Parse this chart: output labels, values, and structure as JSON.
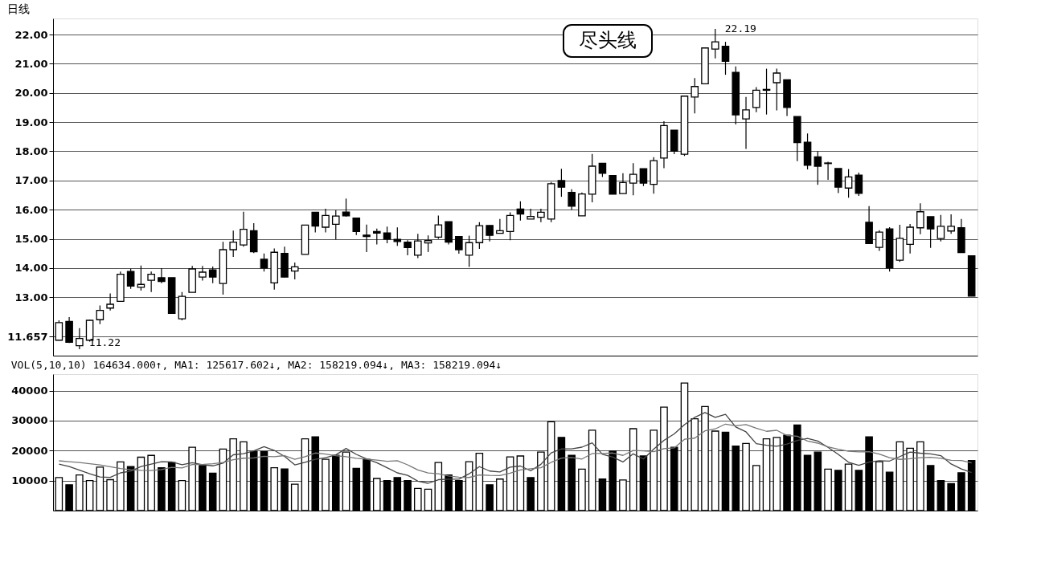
{
  "chart_data": [
    {
      "type": "candlestick",
      "title": "日线",
      "categories": [
        null,
        null,
        null,
        null,
        null,
        null,
        null,
        null,
        null,
        null,
        null,
        null,
        null,
        null,
        null,
        null,
        null,
        null,
        null,
        null,
        null,
        null,
        null,
        null,
        null,
        null,
        null,
        null,
        null,
        null,
        null,
        null,
        null,
        null,
        null,
        null,
        null,
        null,
        null,
        null,
        null,
        null,
        null,
        null,
        null,
        null,
        null,
        null,
        null,
        null,
        null,
        null,
        null,
        null,
        null,
        null,
        null,
        null,
        null,
        null,
        null,
        null,
        null,
        null,
        null,
        null,
        null,
        null,
        null,
        null,
        null,
        null,
        null,
        null,
        null,
        null,
        null,
        null,
        null,
        null,
        null,
        null,
        null,
        null,
        null,
        null,
        null,
        null,
        null,
        null
      ],
      "ohlc": [
        [
          11.53,
          12.21,
          11.53,
          12.13
        ],
        [
          12.17,
          12.32,
          11.43,
          11.46
        ],
        [
          11.34,
          11.94,
          11.22,
          11.59
        ],
        [
          11.53,
          12.23,
          11.48,
          12.21
        ],
        [
          12.23,
          12.72,
          12.08,
          12.55
        ],
        [
          12.63,
          13.13,
          12.55,
          12.76
        ],
        [
          12.86,
          13.88,
          12.86,
          13.79
        ],
        [
          13.88,
          13.98,
          13.29,
          13.38
        ],
        [
          13.34,
          14.09,
          13.23,
          13.44
        ],
        [
          13.58,
          13.88,
          13.18,
          13.79
        ],
        [
          13.67,
          14.0,
          13.48,
          13.54
        ],
        [
          13.67,
          13.67,
          12.43,
          12.45
        ],
        [
          12.26,
          13.18,
          12.21,
          13.03
        ],
        [
          13.17,
          14.07,
          13.17,
          13.97
        ],
        [
          13.69,
          14.07,
          13.57,
          13.86
        ],
        [
          13.94,
          14.05,
          13.48,
          13.69
        ],
        [
          13.47,
          14.9,
          13.09,
          14.63
        ],
        [
          14.63,
          15.28,
          14.38,
          14.89
        ],
        [
          14.79,
          15.93,
          14.73,
          15.33
        ],
        [
          15.28,
          15.54,
          14.51,
          14.56
        ],
        [
          14.3,
          14.5,
          13.88,
          14.0
        ],
        [
          13.49,
          14.67,
          13.26,
          14.54
        ],
        [
          14.5,
          14.73,
          13.69,
          13.69
        ],
        [
          13.9,
          14.19,
          13.61,
          14.04
        ],
        [
          14.47,
          15.47,
          14.47,
          15.47
        ],
        [
          15.91,
          15.91,
          15.22,
          15.44
        ],
        [
          15.4,
          16.03,
          15.22,
          15.8
        ],
        [
          15.5,
          15.98,
          14.98,
          15.78
        ],
        [
          15.92,
          16.38,
          15.76,
          15.79
        ],
        [
          15.71,
          15.71,
          15.13,
          15.25
        ],
        [
          15.13,
          15.49,
          14.55,
          15.08
        ],
        [
          15.25,
          15.35,
          14.81,
          15.2
        ],
        [
          15.2,
          15.42,
          14.85,
          14.99
        ],
        [
          14.98,
          15.39,
          14.76,
          14.91
        ],
        [
          14.89,
          14.95,
          14.44,
          14.7
        ],
        [
          14.44,
          15.17,
          14.34,
          14.93
        ],
        [
          14.86,
          15.12,
          14.55,
          14.94
        ],
        [
          15.06,
          15.8,
          15.0,
          15.48
        ],
        [
          15.59,
          15.59,
          14.81,
          14.89
        ],
        [
          15.08,
          15.1,
          14.49,
          14.63
        ],
        [
          14.44,
          15.11,
          14.04,
          14.87
        ],
        [
          14.87,
          15.57,
          14.66,
          15.45
        ],
        [
          15.46,
          15.46,
          14.91,
          15.12
        ],
        [
          15.19,
          15.68,
          15.19,
          15.28
        ],
        [
          15.25,
          15.91,
          14.95,
          15.8
        ],
        [
          16.02,
          16.29,
          15.63,
          15.85
        ],
        [
          15.68,
          16.03,
          15.68,
          15.77
        ],
        [
          15.74,
          16.03,
          15.57,
          15.91
        ],
        [
          15.68,
          16.95,
          15.57,
          16.89
        ],
        [
          17.0,
          17.4,
          16.44,
          16.77
        ],
        [
          16.59,
          16.7,
          16.0,
          16.12
        ],
        [
          15.79,
          16.59,
          15.79,
          16.54
        ],
        [
          16.53,
          17.91,
          16.25,
          17.49
        ],
        [
          17.59,
          17.59,
          17.12,
          17.25
        ],
        [
          17.17,
          17.17,
          16.53,
          16.53
        ],
        [
          16.55,
          17.25,
          16.55,
          16.93
        ],
        [
          16.91,
          17.59,
          16.49,
          17.21
        ],
        [
          17.4,
          17.4,
          16.81,
          16.91
        ],
        [
          16.87,
          17.8,
          16.55,
          17.68
        ],
        [
          17.77,
          19.03,
          17.42,
          18.88
        ],
        [
          18.72,
          18.73,
          17.9,
          18.0
        ],
        [
          17.9,
          19.91,
          17.84,
          19.89
        ],
        [
          19.86,
          20.51,
          19.3,
          20.22
        ],
        [
          20.31,
          21.54,
          20.31,
          21.54
        ],
        [
          21.5,
          22.19,
          21.18,
          21.75
        ],
        [
          21.6,
          21.75,
          20.62,
          21.08
        ],
        [
          20.7,
          20.91,
          18.92,
          19.25
        ],
        [
          19.11,
          19.86,
          18.08,
          19.42
        ],
        [
          19.5,
          20.2,
          19.34,
          20.09
        ],
        [
          20.12,
          20.83,
          19.26,
          20.09
        ],
        [
          20.35,
          20.83,
          19.4,
          20.68
        ],
        [
          20.45,
          20.45,
          19.21,
          19.5
        ],
        [
          19.19,
          19.19,
          17.66,
          18.3
        ],
        [
          18.31,
          18.61,
          17.38,
          17.52
        ],
        [
          17.81,
          18.0,
          16.85,
          17.49
        ],
        [
          17.6,
          17.64,
          17.02,
          17.58
        ],
        [
          17.41,
          17.41,
          16.57,
          16.77
        ],
        [
          16.74,
          17.39,
          16.41,
          17.12
        ],
        [
          17.18,
          17.27,
          16.47,
          16.56
        ],
        [
          15.57,
          16.12,
          14.84,
          14.84
        ],
        [
          14.71,
          15.3,
          14.59,
          15.23
        ],
        [
          15.34,
          15.4,
          13.88,
          14.0
        ],
        [
          14.27,
          15.48,
          14.21,
          15.02
        ],
        [
          14.81,
          15.51,
          14.5,
          15.4
        ],
        [
          15.38,
          16.22,
          15.16,
          15.93
        ],
        [
          15.76,
          15.76,
          14.69,
          15.34
        ],
        [
          15.01,
          15.82,
          14.91,
          15.43
        ],
        [
          15.27,
          15.84,
          15.17,
          15.43
        ],
        [
          15.38,
          15.68,
          14.53,
          14.53
        ],
        [
          14.42,
          14.42,
          13.04,
          13.04
        ]
      ],
      "colors": [
        "#ffffff",
        "#000000",
        "#ffffff",
        "#ffffff",
        "#ffffff",
        "#ffffff",
        "#ffffff",
        "#000000",
        "#ffffff",
        "#ffffff",
        "#000000",
        "#000000",
        "#ffffff",
        "#ffffff",
        "#ffffff",
        "#000000",
        "#ffffff",
        "#ffffff",
        "#ffffff",
        "#000000",
        "#000000",
        "#ffffff",
        "#000000",
        "#ffffff",
        "#ffffff",
        "#000000",
        "#ffffff",
        "#ffffff",
        "#000000",
        "#000000",
        "#000000",
        "#000000",
        "#000000",
        "#000000",
        "#000000",
        "#ffffff",
        "#ffffff",
        "#ffffff",
        "#000000",
        "#000000",
        "#ffffff",
        "#ffffff",
        "#000000",
        "#ffffff",
        "#ffffff",
        "#000000",
        "#ffffff",
        "#ffffff",
        "#ffffff",
        "#000000",
        "#000000",
        "#ffffff",
        "#ffffff",
        "#000000",
        "#000000",
        "#ffffff",
        "#ffffff",
        "#000000",
        "#ffffff",
        "#ffffff",
        "#000000",
        "#ffffff",
        "#ffffff",
        "#ffffff",
        "#ffffff",
        "#000000",
        "#000000",
        "#ffffff",
        "#ffffff",
        "#000000",
        "#ffffff",
        "#000000",
        "#000000",
        "#000000",
        "#000000",
        "#000000",
        "#000000",
        "#ffffff",
        "#000000",
        "#000000",
        "#ffffff",
        "#000000",
        "#ffffff",
        "#ffffff",
        "#ffffff",
        "#000000",
        "#ffffff",
        "#ffffff",
        "#000000",
        "#000000"
      ],
      "ylim": [
        11.0,
        22.55
      ],
      "yticks": [
        11.657,
        {
          "value": 13,
          "label": "13.00"
        },
        {
          "value": 14,
          "label": "14.00"
        },
        {
          "value": 15,
          "label": "15.00"
        },
        {
          "value": 16,
          "label": "16.00"
        },
        {
          "value": 17,
          "label": "17.00"
        },
        {
          "value": 18,
          "label": "18.00"
        },
        {
          "value": 19,
          "label": "19.00"
        },
        {
          "value": 20,
          "label": "20.00"
        },
        {
          "value": 21,
          "label": "21.00"
        },
        {
          "value": 22,
          "label": "22.00"
        }
      ],
      "grid": "y",
      "tick_labels": "y",
      "annotations": [
        "11.22",
        "22.19",
        "尽头线"
      ]
    },
    {
      "type": "bar",
      "title": "VOL(5,10,10) 164634.000↑, MA1: 125617.602↓, MA2: 158219.094↓, MA3: 158219.094↓",
      "categories": [
        null,
        null,
        null,
        null,
        null,
        null,
        null,
        null,
        null,
        null,
        null,
        null,
        null,
        null,
        null,
        null,
        null,
        null,
        null,
        null,
        null,
        null,
        null,
        null,
        null,
        null,
        null,
        null,
        null,
        null,
        null,
        null,
        null,
        null,
        null,
        null,
        null,
        null,
        null,
        null,
        null,
        null,
        null,
        null,
        null,
        null,
        null,
        null,
        null,
        null,
        null,
        null,
        null,
        null,
        null,
        null,
        null,
        null,
        null,
        null,
        null,
        null,
        null,
        null,
        null,
        null,
        null,
        null,
        null,
        null,
        null,
        null,
        null,
        null,
        null,
        null,
        null,
        null,
        null,
        null,
        null,
        null,
        null,
        null,
        null,
        null,
        null,
        null,
        null,
        null
      ],
      "series": [
        {
          "type": "bar",
          "colors": [
            "#ffffff",
            "#000000",
            "#ffffff",
            "#ffffff",
            "#ffffff",
            "#ffffff",
            "#ffffff",
            "#000000",
            "#ffffff",
            "#ffffff",
            "#000000",
            "#000000",
            "#ffffff",
            "#ffffff",
            "#000000",
            "#000000",
            "#ffffff",
            "#ffffff",
            "#ffffff",
            "#000000",
            "#000000",
            "#ffffff",
            "#000000",
            "#ffffff",
            "#ffffff",
            "#000000",
            "#ffffff",
            "#000000",
            "#ffffff",
            "#000000",
            "#000000",
            "#ffffff",
            "#000000",
            "#000000",
            "#000000",
            "#ffffff",
            "#ffffff",
            "#ffffff",
            "#000000",
            "#000000",
            "#ffffff",
            "#ffffff",
            "#000000",
            "#ffffff",
            "#ffffff",
            "#ffffff",
            "#000000",
            "#ffffff",
            "#ffffff",
            "#000000",
            "#000000",
            "#ffffff",
            "#ffffff",
            "#000000",
            "#000000",
            "#ffffff",
            "#ffffff",
            "#000000",
            "#ffffff",
            "#ffffff",
            "#000000",
            "#ffffff",
            "#ffffff",
            "#ffffff",
            "#ffffff",
            "#000000",
            "#000000",
            "#ffffff",
            "#ffffff",
            "#ffffff",
            "#ffffff",
            "#000000",
            "#000000",
            "#000000",
            "#000000",
            "#ffffff",
            "#000000",
            "#ffffff",
            "#000000",
            "#000000",
            "#ffffff",
            "#000000",
            "#ffffff",
            "#ffffff",
            "#ffffff",
            "#000000",
            "#000000",
            "#000000",
            "#000000",
            "#000000"
          ],
          "values": [
            11000,
            8600,
            11900,
            10000,
            14500,
            10300,
            16200,
            14700,
            17800,
            18400,
            14300,
            16000,
            10000,
            21100,
            15000,
            12500,
            20500,
            23900,
            22900,
            19600,
            19600,
            14300,
            13900,
            8800,
            23900,
            24600,
            17100,
            18400,
            19500,
            14100,
            17100,
            10700,
            10000,
            11000,
            10000,
            7400,
            7100,
            16000,
            11900,
            10000,
            16300,
            19100,
            8600,
            10500,
            17900,
            18200,
            11000,
            19500,
            29600,
            24400,
            18400,
            13800,
            26800,
            10500,
            19800,
            10200,
            27300,
            18200,
            26800,
            34500,
            21100,
            42500,
            30600,
            34700,
            26500,
            26100,
            21500,
            22400,
            15000,
            23900,
            24400,
            25100,
            28500,
            18400,
            19500,
            13800,
            13400,
            15500,
            13400,
            24600,
            16300,
            12800,
            22900,
            20800,
            22900,
            15000,
            10000,
            9000,
            12600,
            16700
          ]
        },
        {
          "type": "line",
          "color": "#444444",
          "values": [
            15500,
            14700,
            13500,
            12300,
            11200,
            11060,
            12580,
            13140,
            14700,
            15480,
            16280,
            16240,
            15300,
            15960,
            15280,
            14920,
            15820,
            18600,
            18960,
            19880,
            21300,
            20060,
            18060,
            15240,
            16100,
            17100,
            17660,
            18560,
            20700,
            18740,
            17240,
            15960,
            14280,
            12580,
            11760,
            9820,
            9100,
            10300,
            10480,
            10480,
            12260,
            14660,
            13180,
            12900,
            14480,
            14860,
            13240,
            15420,
            19240,
            20540,
            20580,
            21140,
            22600,
            18780,
            17860,
            16220,
            18920,
            17200,
            20460,
            23400,
            25580,
            28620,
            31100,
            32680,
            31080,
            32080,
            27880,
            26240,
            22300,
            21780,
            21440,
            22160,
            23380,
            24060,
            23180,
            21060,
            18720,
            16120,
            15120,
            16140,
            16640,
            16520,
            18000,
            19480,
            19140,
            18880,
            18320,
            15540,
            13900,
            12660
          ]
        },
        {
          "type": "line",
          "color": "#777777",
          "values": [
            16600,
            16300,
            16000,
            15600,
            15200,
            14600,
            14000,
            13600,
            13400,
            13340,
            13670,
            14410,
            14220,
            15330,
            15380,
            15600,
            16030,
            16950,
            17460,
            17580,
            18110,
            17940,
            18330,
            17100,
            17990,
            19200,
            18860,
            18310,
            17970,
            17420,
            17170,
            16810,
            16420,
            16640,
            15250,
            13530,
            12530,
            12290,
            11530,
            11120,
            11040,
            11880,
            11740,
            11690,
            12480,
            13560,
            13950,
            14300,
            16070,
            17510,
            17720,
            17190,
            19010,
            19010,
            19200,
            18400,
            20030,
            19900,
            19620,
            20630,
            20900,
            23770,
            24150,
            26570,
            27240,
            28830,
            28250,
            28670,
            27490,
            26430,
            26760,
            25020,
            24810,
            23180,
            22480,
            21250,
            20440,
            19750,
            19590,
            19660,
            18850,
            17620,
            17060,
            17300,
            17640,
            17760,
            17420,
            16770,
            16690,
            15900
          ]
        }
      ],
      "ylim": [
        0,
        45500
      ],
      "yticks": [
        10000,
        20000,
        30000,
        40000
      ],
      "grid": "y",
      "tick_labels": "y",
      "line_style": "solid"
    }
  ]
}
